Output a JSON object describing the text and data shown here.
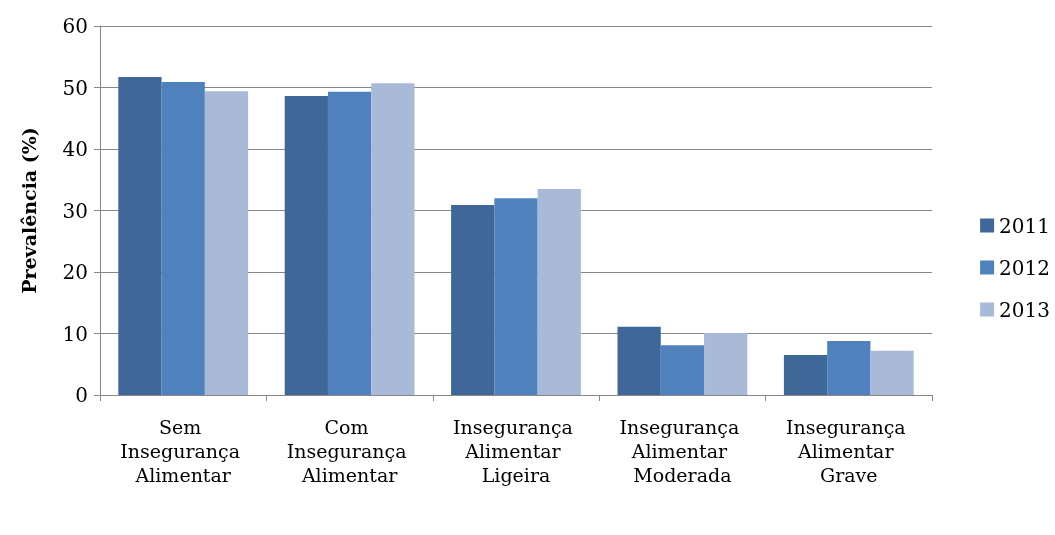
{
  "chart_data": {
    "type": "bar",
    "ylabel": "Prevalência (%)",
    "categories": [
      "Sem Insegurança Alimentar",
      "Com Insegurança Alimentar",
      "Insegurança Alimentar Ligeira",
      "Insegurança Alimentar Moderada",
      "Insegurança Alimentar Grave"
    ],
    "series": [
      {
        "name": "2011",
        "color": "#3f6898",
        "values": [
          51.7,
          48.6,
          30.9,
          11.1,
          6.5
        ]
      },
      {
        "name": "2012",
        "color": "#4f81bd",
        "values": [
          50.9,
          49.3,
          32.0,
          8.1,
          8.8
        ]
      },
      {
        "name": "2013",
        "color": "#a9b9d8",
        "values": [
          49.4,
          50.7,
          33.5,
          10.1,
          7.2
        ]
      }
    ],
    "ylim": [
      0,
      60
    ],
    "yticks": [
      0,
      10,
      20,
      30,
      40,
      50,
      60
    ],
    "grid": "y",
    "legend": "right"
  }
}
